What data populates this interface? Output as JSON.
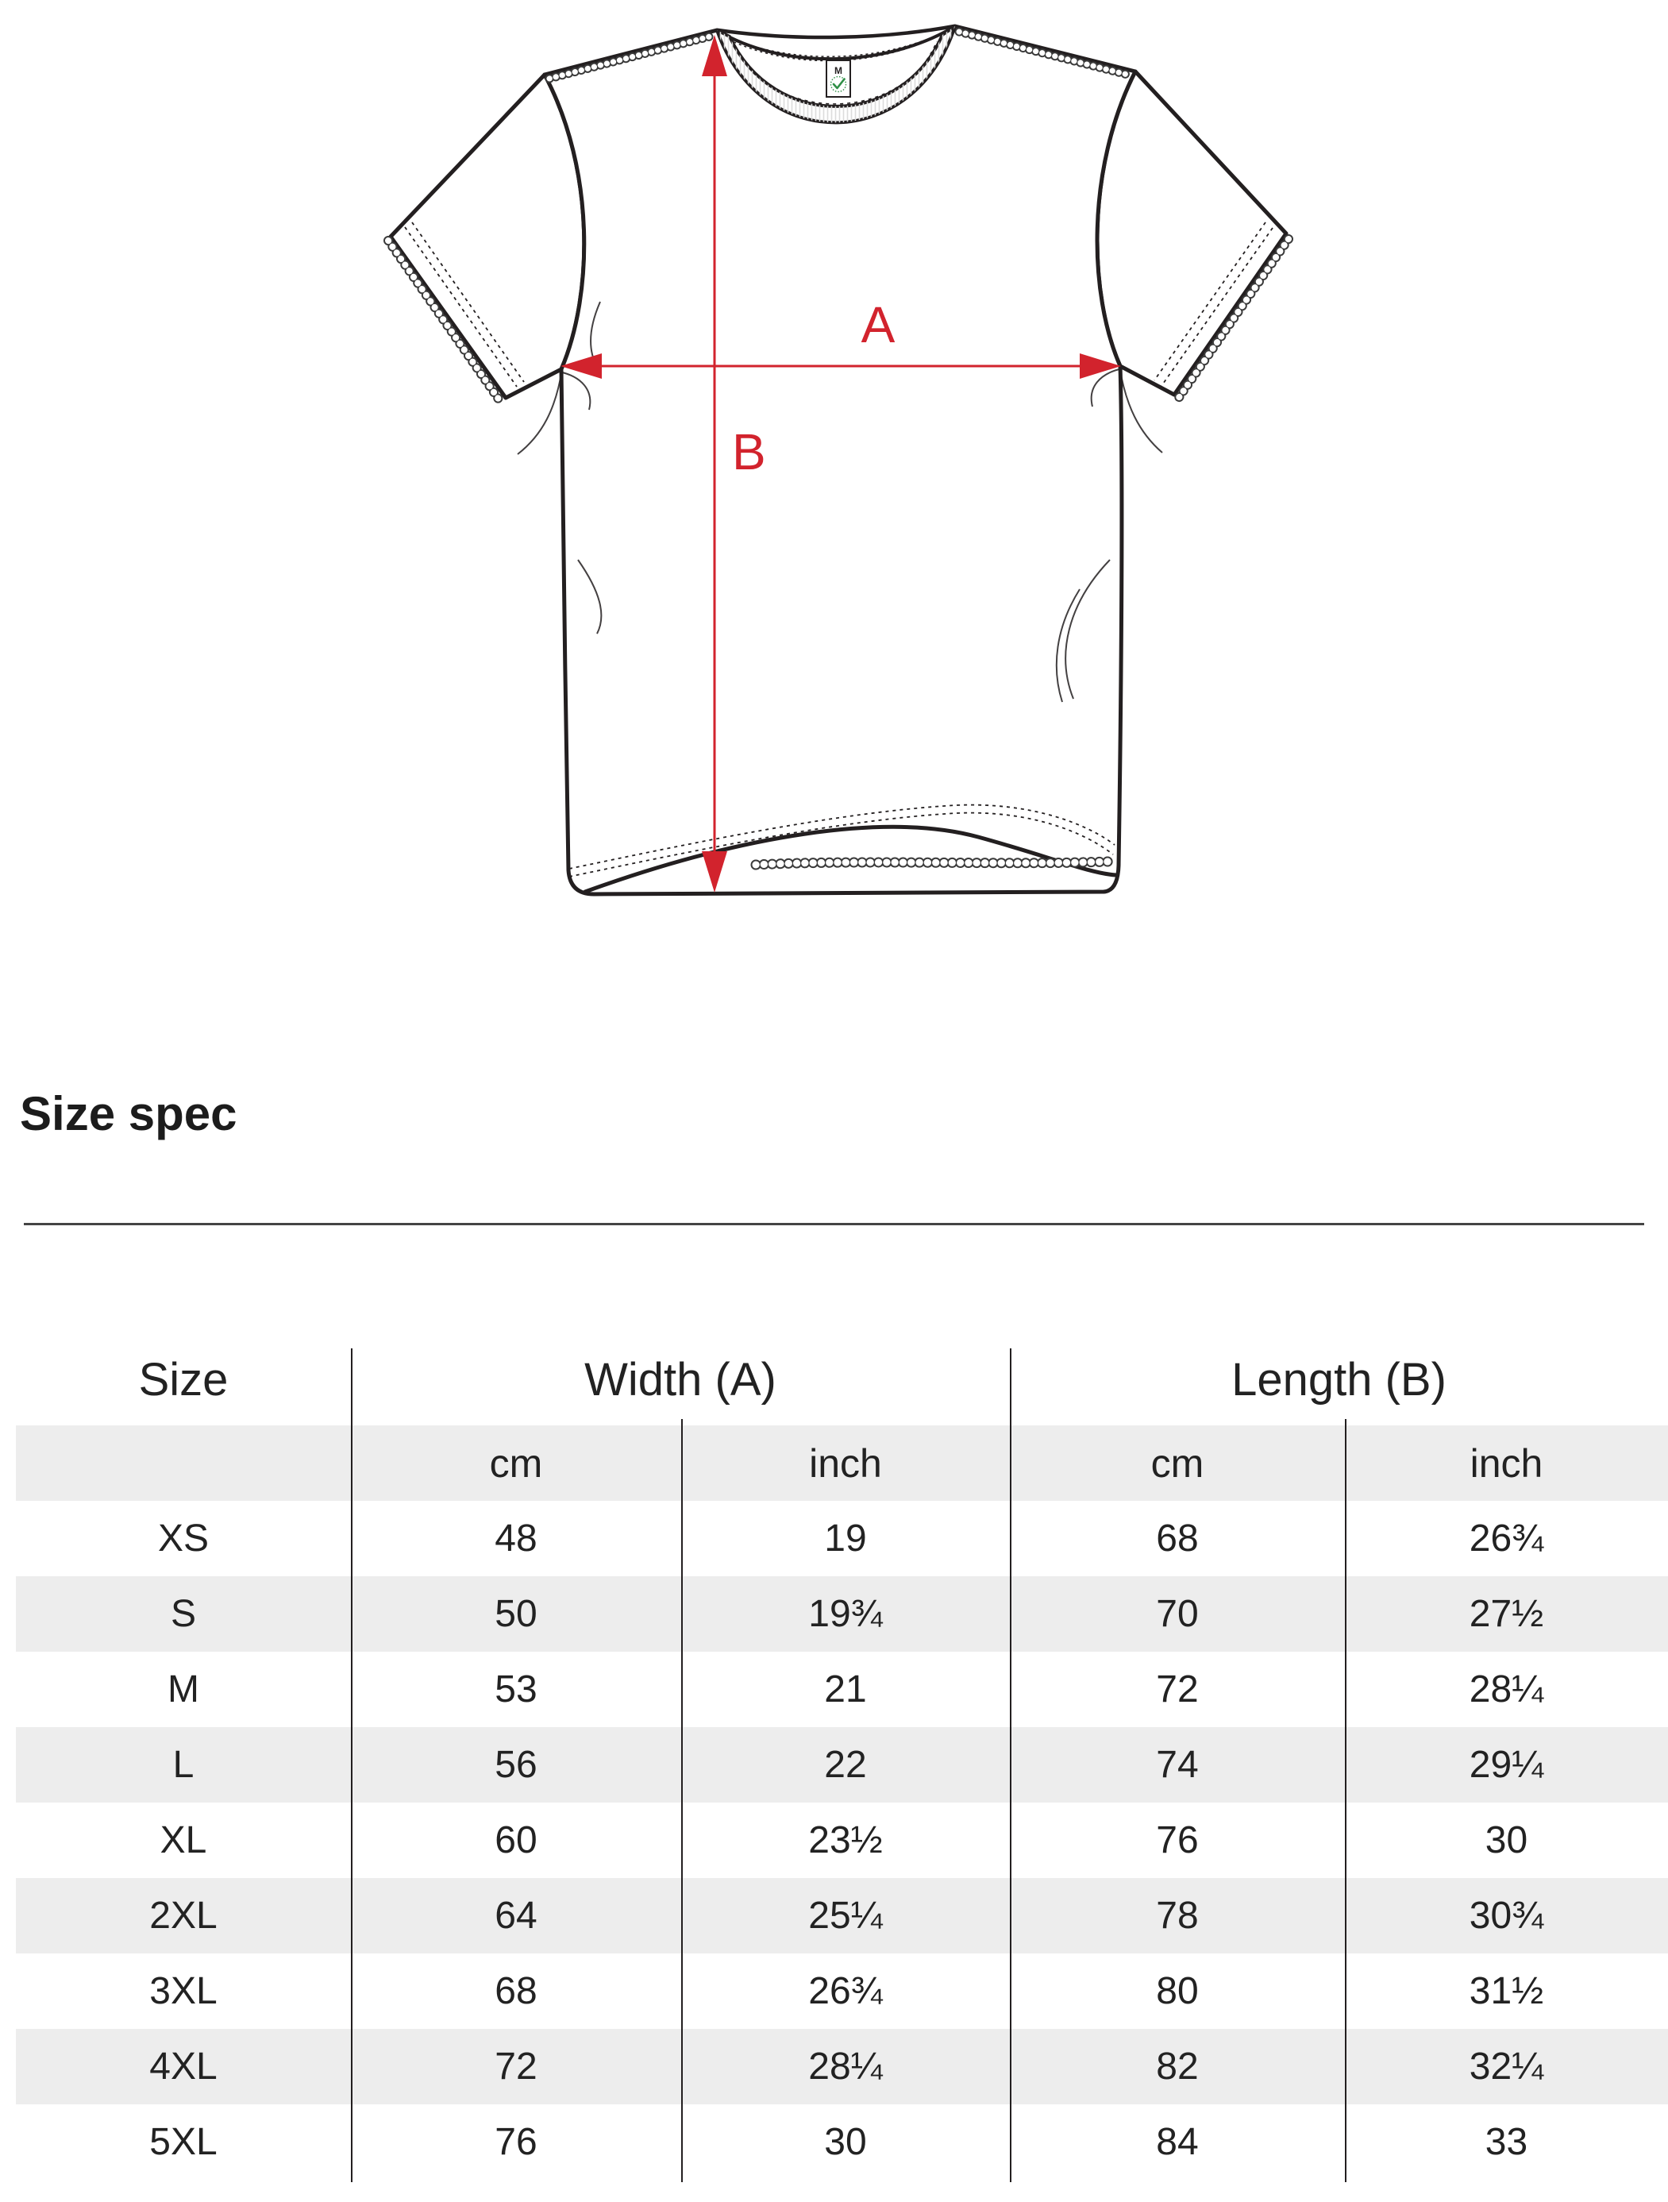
{
  "page": {
    "background": "#ffffff"
  },
  "diagram": {
    "measure_a_label": "A",
    "measure_b_label": "B",
    "arrow_color": "#d2232d",
    "outline_color": "#231f20",
    "stripe_color": "#ededed",
    "care_label_size_text": "M",
    "care_label_logo": "green-circular-stamp-with-check",
    "logo_green": "#2f8f46"
  },
  "heading": {
    "title": "Size spec"
  },
  "table": {
    "col_size_header": "Size",
    "group_headers": [
      {
        "label": "Width (A)"
      },
      {
        "label": "Length (B)"
      }
    ],
    "unit_headers": [
      "cm",
      "inch",
      "cm",
      "inch"
    ],
    "rows": [
      {
        "size": "XS",
        "width_cm": "48",
        "width_inch": "19",
        "length_cm": "68",
        "length_inch": "26¾"
      },
      {
        "size": "S",
        "width_cm": "50",
        "width_inch": "19¾",
        "length_cm": "70",
        "length_inch": "27½"
      },
      {
        "size": "M",
        "width_cm": "53",
        "width_inch": "21",
        "length_cm": "72",
        "length_inch": "28¼"
      },
      {
        "size": "L",
        "width_cm": "56",
        "width_inch": "22",
        "length_cm": "74",
        "length_inch": "29¼"
      },
      {
        "size": "XL",
        "width_cm": "60",
        "width_inch": "23½",
        "length_cm": "76",
        "length_inch": "30"
      },
      {
        "size": "2XL",
        "width_cm": "64",
        "width_inch": "25¼",
        "length_cm": "78",
        "length_inch": "30¾"
      },
      {
        "size": "3XL",
        "width_cm": "68",
        "width_inch": "26¾",
        "length_cm": "80",
        "length_inch": "31½"
      },
      {
        "size": "4XL",
        "width_cm": "72",
        "width_inch": "28¼",
        "length_cm": "82",
        "length_inch": "32¼"
      },
      {
        "size": "5XL",
        "width_cm": "76",
        "width_inch": "30",
        "length_cm": "84",
        "length_inch": "33"
      }
    ]
  }
}
